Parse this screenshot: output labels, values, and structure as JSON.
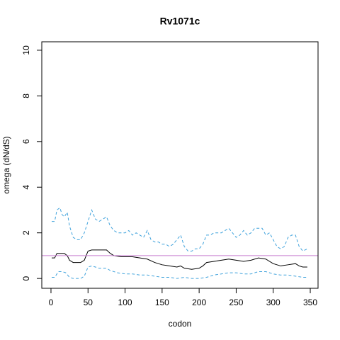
{
  "chart_data": {
    "type": "line",
    "title": "Rv1071c",
    "xlabel": "codon",
    "ylabel": "omega (dN/dS)",
    "xlim": [
      -12.4,
      360.5
    ],
    "ylim": [
      -0.43,
      10.37
    ],
    "xticks": [
      0,
      50,
      100,
      150,
      200,
      250,
      300,
      350
    ],
    "yticks": [
      0,
      2,
      4,
      6,
      8,
      10
    ],
    "hline": {
      "value": 1,
      "color": "#c77dd0"
    },
    "series": [
      {
        "color": "#3fa2dc",
        "dash": true,
        "x": [
          1,
          5,
          8,
          12,
          15,
          18,
          22,
          25,
          30,
          35,
          40,
          45,
          50,
          55,
          60,
          65,
          70,
          75,
          80,
          85,
          90,
          95,
          100,
          105,
          110,
          115,
          120,
          125,
          130,
          135,
          140,
          145,
          150,
          155,
          160,
          165,
          170,
          175,
          180,
          185,
          190,
          195,
          200,
          205,
          210,
          215,
          220,
          225,
          230,
          235,
          240,
          245,
          250,
          255,
          260,
          265,
          270,
          275,
          280,
          285,
          290,
          295,
          300,
          305,
          310,
          315,
          320,
          325,
          330,
          335,
          340,
          346
        ],
        "values": [
          2.5,
          2.5,
          3.0,
          3.1,
          2.8,
          2.7,
          2.9,
          2.3,
          1.8,
          1.7,
          1.7,
          2.0,
          2.5,
          3.0,
          2.6,
          2.5,
          2.6,
          2.7,
          2.3,
          2.1,
          2.0,
          2.0,
          2.0,
          2.1,
          1.9,
          2.0,
          1.9,
          1.8,
          2.1,
          1.7,
          1.6,
          1.6,
          1.5,
          1.5,
          1.4,
          1.5,
          1.7,
          1.9,
          1.4,
          1.2,
          1.2,
          1.3,
          1.3,
          1.5,
          1.9,
          1.9,
          2.0,
          2.0,
          2.0,
          2.1,
          2.2,
          2.0,
          1.8,
          1.9,
          2.1,
          1.9,
          2.0,
          2.2,
          2.2,
          2.2,
          1.9,
          2.0,
          1.7,
          1.4,
          1.3,
          1.4,
          1.8,
          1.9,
          1.9,
          1.4,
          1.2,
          1.3
        ]
      },
      {
        "color": "#000000",
        "dash": false,
        "x": [
          1,
          5,
          8,
          12,
          18,
          22,
          25,
          30,
          40,
          45,
          50,
          55,
          65,
          75,
          80,
          85,
          95,
          110,
          120,
          130,
          140,
          150,
          160,
          170,
          175,
          180,
          190,
          200,
          205,
          210,
          220,
          230,
          240,
          250,
          260,
          270,
          280,
          290,
          300,
          310,
          320,
          330,
          335,
          340,
          346
        ],
        "values": [
          0.9,
          0.9,
          1.1,
          1.1,
          1.1,
          1.0,
          0.8,
          0.7,
          0.7,
          0.8,
          1.2,
          1.25,
          1.25,
          1.25,
          1.1,
          1.0,
          0.95,
          0.95,
          0.9,
          0.85,
          0.7,
          0.6,
          0.55,
          0.5,
          0.55,
          0.45,
          0.4,
          0.45,
          0.55,
          0.7,
          0.75,
          0.8,
          0.85,
          0.8,
          0.75,
          0.8,
          0.9,
          0.85,
          0.65,
          0.55,
          0.6,
          0.65,
          0.55,
          0.5,
          0.5
        ]
      },
      {
        "color": "#3fa2dc",
        "dash": true,
        "x": [
          1,
          5,
          10,
          15,
          20,
          25,
          30,
          40,
          45,
          50,
          55,
          65,
          75,
          80,
          90,
          100,
          110,
          120,
          130,
          140,
          150,
          160,
          170,
          180,
          190,
          200,
          210,
          220,
          230,
          240,
          250,
          260,
          270,
          280,
          290,
          300,
          310,
          320,
          330,
          340,
          346
        ],
        "values": [
          0.05,
          0.05,
          0.3,
          0.3,
          0.25,
          0.05,
          0.0,
          0.0,
          0.1,
          0.5,
          0.55,
          0.45,
          0.45,
          0.35,
          0.25,
          0.2,
          0.2,
          0.15,
          0.15,
          0.1,
          0.05,
          0.05,
          0.0,
          0.05,
          0.0,
          0.0,
          0.05,
          0.15,
          0.2,
          0.25,
          0.25,
          0.2,
          0.2,
          0.3,
          0.3,
          0.2,
          0.15,
          0.15,
          0.1,
          0.05,
          0.05
        ]
      }
    ]
  }
}
